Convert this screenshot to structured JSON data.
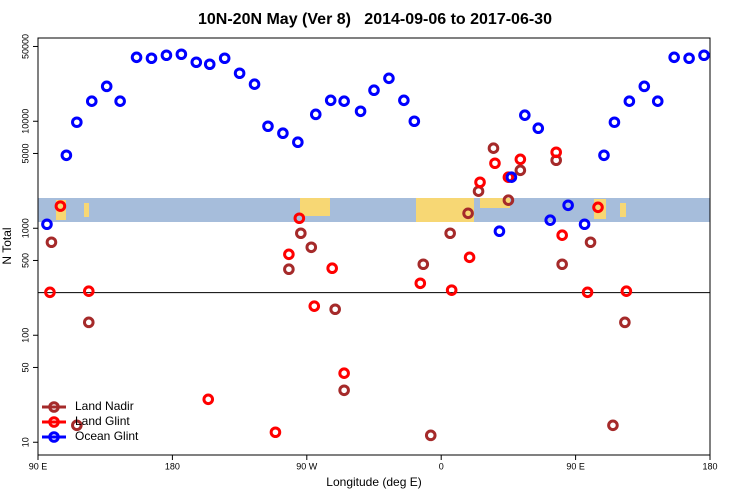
{
  "chart_data": {
    "type": "scatter",
    "title": "10N-20N May (Ver 8)   2014-09-06 to 2017-06-30",
    "xlabel": "Longitude (deg E)",
    "ylabel": "N Total",
    "log_y": true,
    "legend": "bottom-left",
    "xlim": [
      90,
      540
    ],
    "ylim": [
      7.6,
      60000
    ],
    "xticks": [
      {
        "value": 90,
        "label": "90 E"
      },
      180,
      {
        "value": 270,
        "label": "90 W"
      },
      {
        "value": 360,
        "label": "0"
      },
      {
        "value": 450,
        "label": "90 E"
      },
      {
        "value": 540,
        "label": "180"
      }
    ],
    "yticks": [
      10,
      50,
      100,
      500,
      1000,
      5000,
      10000,
      50000
    ],
    "hline": 250,
    "series": [
      {
        "name": "Land Nadir",
        "color": "#a52a2a",
        "x": [
          99,
          116,
          124,
          258,
          266,
          273,
          289,
          295,
          348,
          353,
          366,
          378,
          385,
          395,
          405,
          413,
          437,
          441,
          460,
          475,
          483
        ],
        "values": [
          740,
          14.4,
          132,
          414,
          898,
          664,
          175,
          30.6,
          461,
          11.6,
          898,
          1380,
          2220,
          5600,
          1830,
          3480,
          4320,
          461,
          740,
          14.4,
          132
        ]
      },
      {
        "name": "Land Glint",
        "color": "#ff0000",
        "x": [
          98,
          105,
          124,
          204,
          249,
          265,
          258,
          275,
          287,
          295,
          346,
          367,
          379,
          386,
          396,
          405,
          413,
          437,
          441,
          458,
          465,
          484
        ],
        "values": [
          252,
          1610,
          258,
          25.2,
          12.4,
          1240,
          571,
          187,
          423,
          44.2,
          306,
          264,
          535,
          2690,
          4050,
          3000,
          4410,
          5130,
          861,
          252,
          1570,
          258
        ]
      },
      {
        "name": "Ocean Glint",
        "color": "#0000ff",
        "x": [
          96,
          109,
          116,
          126,
          136,
          145,
          156,
          166,
          176,
          186,
          196,
          205,
          215,
          225,
          235,
          244,
          254,
          264,
          276,
          286,
          295,
          306,
          315,
          325,
          335,
          342,
          399,
          407,
          416,
          425,
          433,
          445,
          456,
          469,
          476,
          486,
          496,
          505,
          516,
          526,
          536
        ],
        "values": [
          1090,
          4810,
          9790,
          15400,
          21200,
          15400,
          39600,
          38800,
          41400,
          42300,
          35600,
          34100,
          38800,
          28100,
          22200,
          8980,
          7730,
          6370,
          11600,
          15700,
          15400,
          12400,
          19500,
          25200,
          15700,
          10000,
          938,
          3000,
          11400,
          8610,
          1190,
          1640,
          1090,
          4810,
          9790,
          15400,
          21200,
          15400,
          39600,
          38800,
          41400
        ]
      }
    ]
  }
}
